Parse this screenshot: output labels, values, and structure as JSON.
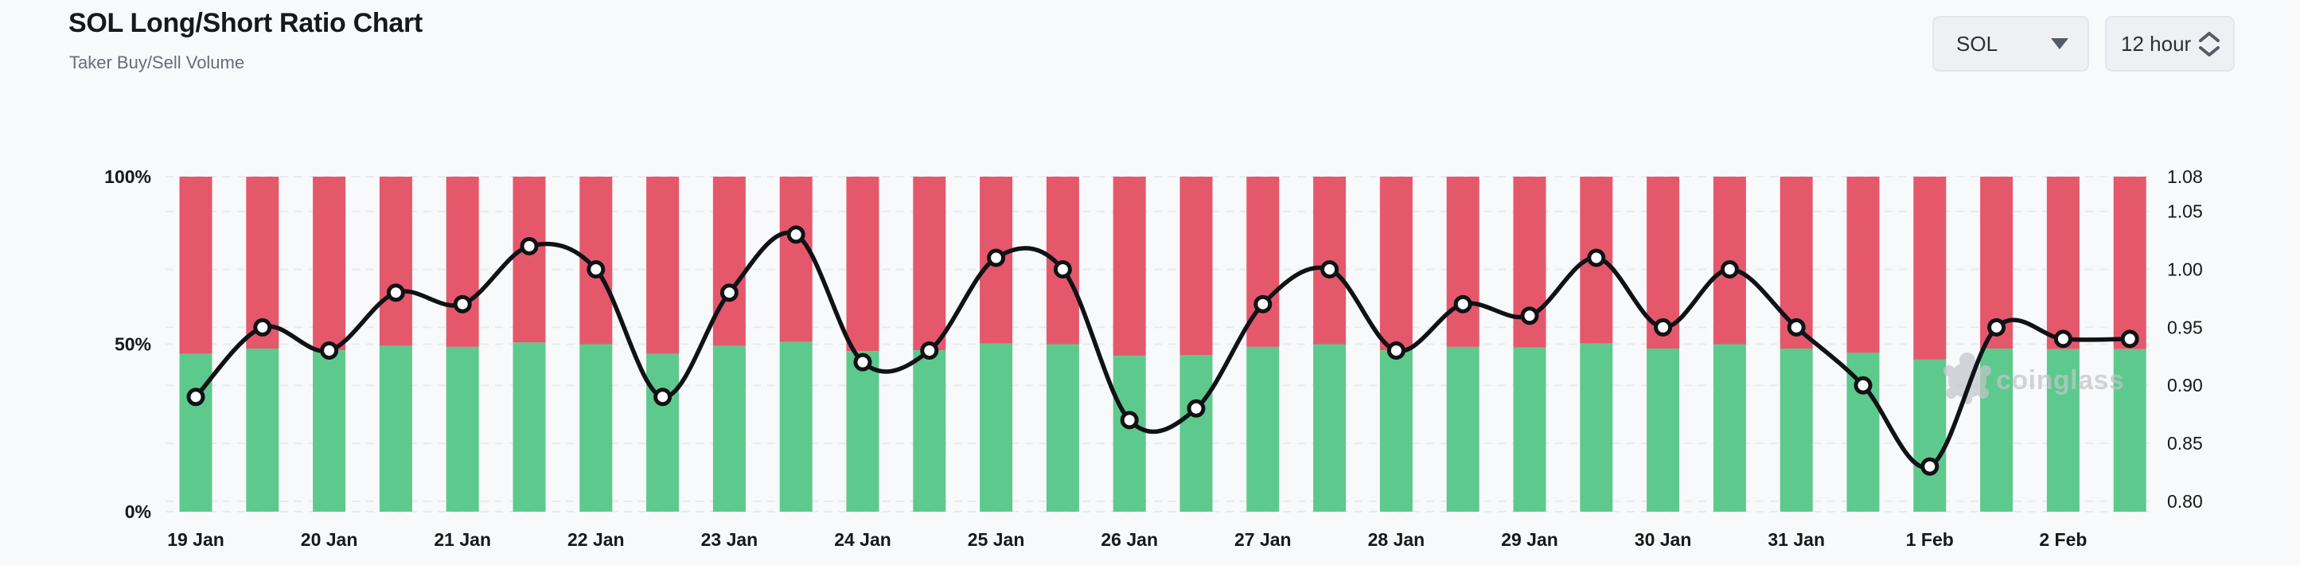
{
  "header": {
    "title": "SOL Long/Short Ratio Chart",
    "subtitle": "Taker Buy/Sell Volume"
  },
  "controls": {
    "symbol_select": {
      "value": "SOL",
      "icon": "caret-down"
    },
    "interval_select": {
      "value": "12 hour",
      "icon": "up-down-spinner"
    }
  },
  "watermark": {
    "text": "coinglass"
  },
  "colors": {
    "long_green": "#5ec98d",
    "short_red": "#e5586b",
    "ratio_line": "#101216",
    "marker_fill": "#ffffff",
    "grid": "#e7eaee",
    "axis_text": "#17181c",
    "watermark_gray": "#c2c5cb"
  },
  "chart_data": {
    "type": "bar",
    "description": "Stacked taker buy (green, bottom) / sell (red, top) volume percentage bars with long/short ratio line overlay, two 12-hour bars per day",
    "x_labels": [
      "19 Jan",
      "20 Jan",
      "21 Jan",
      "22 Jan",
      "23 Jan",
      "24 Jan",
      "25 Jan",
      "26 Jan",
      "27 Jan",
      "28 Jan",
      "29 Jan",
      "30 Jan",
      "31 Jan",
      "1 Feb",
      "2 Feb"
    ],
    "bars_per_label": 2,
    "series": [
      {
        "name": "Taker Buy %",
        "type": "bar",
        "stack_position": "bottom",
        "values": [
          47.1,
          48.7,
          48.2,
          49.5,
          49.2,
          50.5,
          50.0,
          47.1,
          49.5,
          50.7,
          47.9,
          48.2,
          50.2,
          50.0,
          46.5,
          46.8,
          49.2,
          50.0,
          48.2,
          49.2,
          49.0,
          50.2,
          48.7,
          50.0,
          48.7,
          47.4,
          45.4,
          48.7,
          48.5,
          48.5
        ]
      },
      {
        "name": "Taker Sell %",
        "type": "bar",
        "stack_position": "top",
        "values": [
          52.9,
          51.3,
          51.8,
          50.5,
          50.8,
          49.5,
          50.0,
          52.9,
          50.5,
          49.3,
          52.1,
          51.8,
          49.8,
          50.0,
          53.5,
          53.2,
          50.8,
          50.0,
          51.8,
          50.8,
          51.0,
          49.8,
          51.3,
          50.0,
          51.3,
          52.6,
          54.6,
          51.3,
          51.5,
          51.5
        ]
      },
      {
        "name": "Long/Short Ratio",
        "type": "line",
        "values": [
          0.89,
          0.95,
          0.93,
          0.98,
          0.97,
          1.02,
          1.0,
          0.89,
          0.98,
          1.03,
          0.92,
          0.93,
          1.01,
          1.0,
          0.87,
          0.88,
          0.97,
          1.0,
          0.93,
          0.97,
          0.96,
          1.01,
          0.95,
          1.0,
          0.95,
          0.9,
          0.83,
          0.95,
          0.94,
          0.94
        ]
      }
    ],
    "left_axis": {
      "tick_labels": [
        "100%",
        "50%",
        "0%"
      ],
      "tick_values": [
        100,
        50,
        0
      ],
      "min": 0,
      "max": 100
    },
    "right_axis": {
      "tick_labels": [
        "1.08",
        "1.05",
        "1.00",
        "0.95",
        "0.90",
        "0.85",
        "0.80"
      ],
      "tick_values": [
        1.08,
        1.05,
        1.0,
        0.95,
        0.9,
        0.85,
        0.8
      ],
      "max": 1.08,
      "min": 0.791
    },
    "grid": {
      "horizontal_dashed": true,
      "vertical": false
    },
    "legend_position": "none"
  }
}
